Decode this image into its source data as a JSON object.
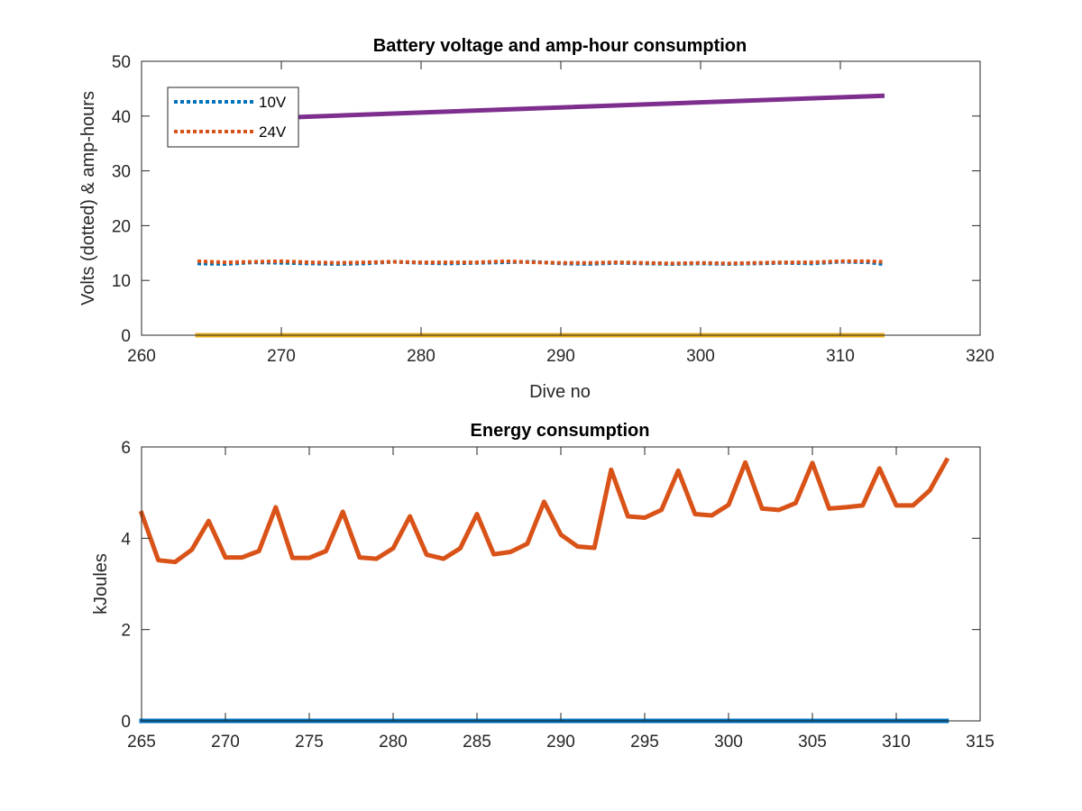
{
  "chart_data": [
    {
      "type": "line",
      "title": "Battery voltage and amp-hour consumption",
      "xlabel": "Dive no",
      "ylabel": "Volts (dotted) & amp-hours",
      "xlim": [
        260,
        320
      ],
      "ylim": [
        0,
        50
      ],
      "xticks": [
        260,
        270,
        280,
        290,
        300,
        310,
        320
      ],
      "yticks": [
        0,
        10,
        20,
        30,
        40,
        50
      ],
      "grid": false,
      "legend_placement": "top-left",
      "series": [
        {
          "name": "10V",
          "style": "dotted",
          "color": "#0072BD",
          "x": [
            264,
            266,
            268,
            270,
            272,
            274,
            276,
            278,
            280,
            282,
            284,
            286,
            288,
            290,
            292,
            294,
            296,
            298,
            300,
            302,
            304,
            306,
            308,
            310,
            312,
            313
          ],
          "y": [
            13.1,
            13.0,
            13.3,
            13.2,
            13.1,
            13.0,
            13.1,
            13.4,
            13.2,
            13.1,
            13.2,
            13.3,
            13.4,
            13.1,
            13.0,
            13.2,
            13.1,
            13.0,
            13.1,
            13.0,
            13.1,
            13.2,
            13.1,
            13.4,
            13.3,
            13.0
          ]
        },
        {
          "name": "24V",
          "style": "dotted",
          "color": "#D95319",
          "x": [
            264,
            266,
            268,
            270,
            272,
            274,
            276,
            278,
            280,
            282,
            284,
            286,
            288,
            290,
            292,
            294,
            296,
            298,
            300,
            302,
            304,
            306,
            308,
            310,
            312,
            313
          ],
          "y": [
            13.5,
            13.3,
            13.4,
            13.5,
            13.3,
            13.2,
            13.3,
            13.4,
            13.3,
            13.3,
            13.3,
            13.5,
            13.3,
            13.2,
            13.2,
            13.3,
            13.2,
            13.1,
            13.2,
            13.1,
            13.2,
            13.3,
            13.3,
            13.5,
            13.5,
            13.4
          ]
        },
        {
          "style": "solid",
          "color": "#7E2F8E",
          "x": [
            271,
            313
          ],
          "y": [
            39.8,
            43.7
          ]
        },
        {
          "style": "solid",
          "color": "#EDB120",
          "x": [
            264,
            313
          ],
          "y": [
            0,
            0
          ]
        }
      ]
    },
    {
      "type": "line",
      "title": "Energy consumption",
      "xlabel": "",
      "ylabel": "kJoules",
      "xlim": [
        265,
        315
      ],
      "ylim": [
        0,
        6
      ],
      "xticks": [
        265,
        270,
        275,
        280,
        285,
        290,
        295,
        300,
        305,
        310,
        315
      ],
      "yticks": [
        0,
        2,
        4,
        6
      ],
      "grid": false,
      "series": [
        {
          "style": "solid",
          "color": "#D95319",
          "x": [
            265,
            266,
            267,
            268,
            269,
            270,
            271,
            272,
            273,
            274,
            275,
            276,
            277,
            278,
            279,
            280,
            281,
            282,
            283,
            284,
            285,
            286,
            287,
            288,
            289,
            290,
            291,
            292,
            293,
            294,
            295,
            296,
            297,
            298,
            299,
            300,
            301,
            302,
            303,
            304,
            305,
            306,
            307,
            308,
            309,
            310,
            311,
            312,
            313
          ],
          "y": [
            4.55,
            3.52,
            3.48,
            3.75,
            4.38,
            3.58,
            3.58,
            3.72,
            4.68,
            3.57,
            3.57,
            3.72,
            4.58,
            3.58,
            3.55,
            3.78,
            4.48,
            3.64,
            3.55,
            3.78,
            4.53,
            3.65,
            3.7,
            3.88,
            4.8,
            4.08,
            3.82,
            3.79,
            5.5,
            4.48,
            4.45,
            4.62,
            5.48,
            4.53,
            4.5,
            4.73,
            5.66,
            4.65,
            4.62,
            4.77,
            5.65,
            4.65,
            4.68,
            4.72,
            5.53,
            4.72,
            4.72,
            5.05,
            5.71
          ]
        },
        {
          "style": "solid",
          "color": "#0072BD",
          "x": [
            265,
            313
          ],
          "y": [
            0,
            0
          ]
        }
      ]
    }
  ]
}
